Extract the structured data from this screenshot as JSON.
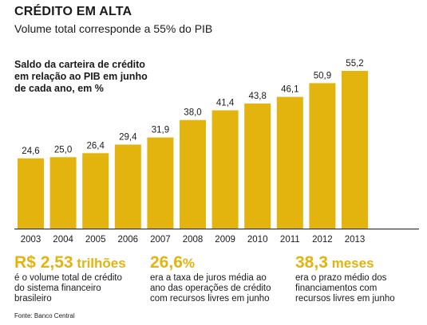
{
  "header": {
    "title": "CRÉDITO EM ALTA",
    "subtitle": "Volume total corresponde a 55% do PIB"
  },
  "chart_data": {
    "type": "bar",
    "title": "Saldo da carteira de crédito em relação ao PIB em junho de cada ano, em %",
    "categories": [
      "2003",
      "2004",
      "2005",
      "2006",
      "2007",
      "2008",
      "2009",
      "2010",
      "2011",
      "2012",
      "2013"
    ],
    "values": [
      24.6,
      25.0,
      26.4,
      29.4,
      31.9,
      38.0,
      41.4,
      43.8,
      46.1,
      50.9,
      55.2
    ],
    "value_labels": [
      "24,6",
      "25,0",
      "26,4",
      "29,4",
      "31,9",
      "38,0",
      "41,4",
      "43,8",
      "46,1",
      "50,9",
      "55,2"
    ],
    "ylim": [
      0,
      55.2
    ],
    "grid": false,
    "bar_color": "#e3b40e"
  },
  "description_lines": [
    "Saldo da carteira de crédito",
    "em relação ao PIB em junho",
    "de cada ano, em %"
  ],
  "stats": [
    {
      "prefix": "R$ ",
      "value": "2,53",
      "unit": " trilhões",
      "lines": [
        "é o volume total de crédito",
        "do sistema financeiro",
        "brasileiro"
      ]
    },
    {
      "prefix": "",
      "value": "26,6",
      "unit": "%",
      "lines": [
        "era a taxa de juros média ao",
        "ano das operações de crédito",
        "com recursos livres em junho"
      ]
    },
    {
      "prefix": "",
      "value": "38,3",
      "unit": " meses",
      "lines": [
        "era o prazo médio dos",
        "financiamentos com",
        "recursos livres em junho"
      ]
    }
  ],
  "source": "Fonte: Banco Central",
  "colors": {
    "accent": "#e3b40e",
    "text": "#1a1a1a"
  }
}
